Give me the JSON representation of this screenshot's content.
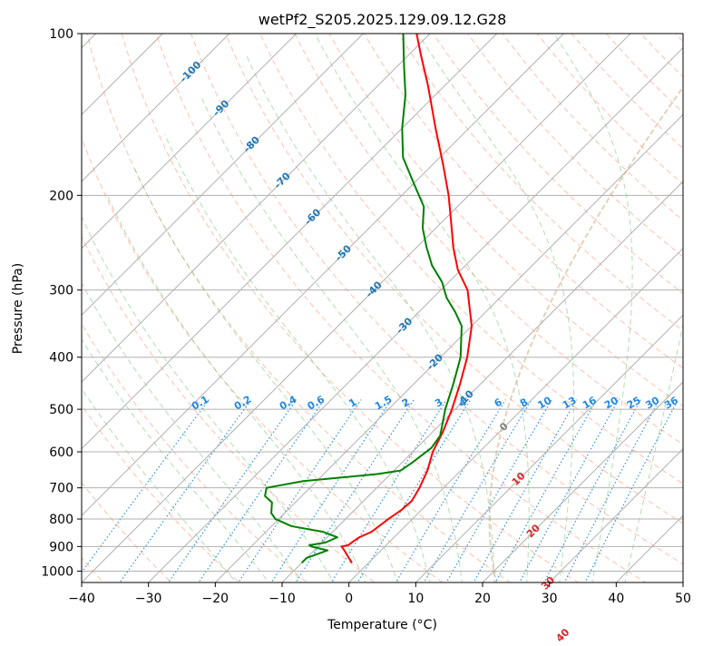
{
  "chart_data": {
    "type": "line",
    "subtype": "skew-T log-P diagram",
    "title": "wetPf2_S205.2025.129.09.12.G28",
    "xlabel": "Temperature (°C)",
    "ylabel": "Pressure (hPa)",
    "xlim": [
      -40,
      50
    ],
    "ylim": [
      1050,
      100
    ],
    "y_scale": "log",
    "grid": true,
    "x_ticks": [
      -40,
      -30,
      -20,
      -10,
      0,
      10,
      20,
      30,
      40,
      50
    ],
    "y_ticks": [
      100,
      200,
      300,
      400,
      500,
      600,
      700,
      800,
      900,
      1000
    ],
    "colors": {
      "temperature": "#ff0000",
      "dewpoint": "#008000",
      "dry_adiabat": "#ff8c69",
      "moist_adiabat": "#66bb66",
      "mixing_ratio": "#1e88e5",
      "isotherm_label_cold": "#1f77b4",
      "isotherm_label_warm": "#d62728",
      "isotherm_label_zero": "#7f7f7f",
      "grid": "#b0b0b0",
      "lcl_curve": "#d2b48c"
    },
    "isotherm_labels": [
      -100,
      -90,
      -80,
      -70,
      -60,
      -50,
      -40,
      -30,
      -20,
      -10,
      0,
      10,
      20,
      30,
      40
    ],
    "mixing_ratio_labels": [
      "0.1",
      "0.2",
      "0.4",
      "0.6",
      "1",
      "1.5",
      "2",
      "3",
      "4",
      "6",
      "8",
      "10",
      "13",
      "16",
      "20",
      "25",
      "30",
      "36"
    ],
    "series": [
      {
        "name": "Temperature",
        "points": [
          {
            "p": 965,
            "t": -2.5
          },
          {
            "p": 940,
            "t": -4.0
          },
          {
            "p": 915,
            "t": -5.5
          },
          {
            "p": 900,
            "t": -6.5
          },
          {
            "p": 895,
            "t": -5.7
          },
          {
            "p": 880,
            "t": -5.5
          },
          {
            "p": 865,
            "t": -5.2
          },
          {
            "p": 845,
            "t": -4.2
          },
          {
            "p": 800,
            "t": -3.6
          },
          {
            "p": 770,
            "t": -3.0
          },
          {
            "p": 740,
            "t": -2.8
          },
          {
            "p": 700,
            "t": -3.6
          },
          {
            "p": 650,
            "t": -5.0
          },
          {
            "p": 600,
            "t": -7.0
          },
          {
            "p": 550,
            "t": -8.5
          },
          {
            "p": 500,
            "t": -10.5
          },
          {
            "p": 450,
            "t": -13.0
          },
          {
            "p": 400,
            "t": -16.0
          },
          {
            "p": 350,
            "t": -20.0
          },
          {
            "p": 300,
            "t": -26.0
          },
          {
            "p": 275,
            "t": -30.5
          },
          {
            "p": 250,
            "t": -34.5
          },
          {
            "p": 225,
            "t": -38.5
          },
          {
            "p": 200,
            "t": -43.0
          },
          {
            "p": 175,
            "t": -48.5
          },
          {
            "p": 150,
            "t": -55.0
          },
          {
            "p": 125,
            "t": -62.5
          },
          {
            "p": 110,
            "t": -68.0
          },
          {
            "p": 100,
            "t": -72.0
          }
        ]
      },
      {
        "name": "Dewpoint",
        "points": [
          {
            "p": 965,
            "t": -10.0
          },
          {
            "p": 945,
            "t": -10.0
          },
          {
            "p": 930,
            "t": -9.0
          },
          {
            "p": 915,
            "t": -8.0
          },
          {
            "p": 900,
            "t": -11.0
          },
          {
            "p": 895,
            "t": -11.5
          },
          {
            "p": 885,
            "t": -9.5
          },
          {
            "p": 865,
            "t": -8.5
          },
          {
            "p": 845,
            "t": -11.5
          },
          {
            "p": 825,
            "t": -17.0
          },
          {
            "p": 800,
            "t": -20.5
          },
          {
            "p": 780,
            "t": -22.0
          },
          {
            "p": 745,
            "t": -23.5
          },
          {
            "p": 725,
            "t": -25.5
          },
          {
            "p": 700,
            "t": -26.5
          },
          {
            "p": 680,
            "t": -22.0
          },
          {
            "p": 660,
            "t": -12.0
          },
          {
            "p": 650,
            "t": -9.0
          },
          {
            "p": 630,
            "t": -8.5
          },
          {
            "p": 590,
            "t": -7.8
          },
          {
            "p": 560,
            "t": -8.3
          },
          {
            "p": 500,
            "t": -11.5
          },
          {
            "p": 450,
            "t": -14.0
          },
          {
            "p": 400,
            "t": -17.0
          },
          {
            "p": 350,
            "t": -21.5
          },
          {
            "p": 330,
            "t": -24.5
          },
          {
            "p": 310,
            "t": -28.0
          },
          {
            "p": 290,
            "t": -31.0
          },
          {
            "p": 270,
            "t": -35.0
          },
          {
            "p": 250,
            "t": -38.5
          },
          {
            "p": 230,
            "t": -42.0
          },
          {
            "p": 210,
            "t": -45.0
          },
          {
            "p": 190,
            "t": -50.0
          },
          {
            "p": 170,
            "t": -55.5
          },
          {
            "p": 150,
            "t": -60.0
          },
          {
            "p": 130,
            "t": -64.5
          },
          {
            "p": 115,
            "t": -69.0
          },
          {
            "p": 100,
            "t": -74.0
          }
        ]
      }
    ]
  }
}
